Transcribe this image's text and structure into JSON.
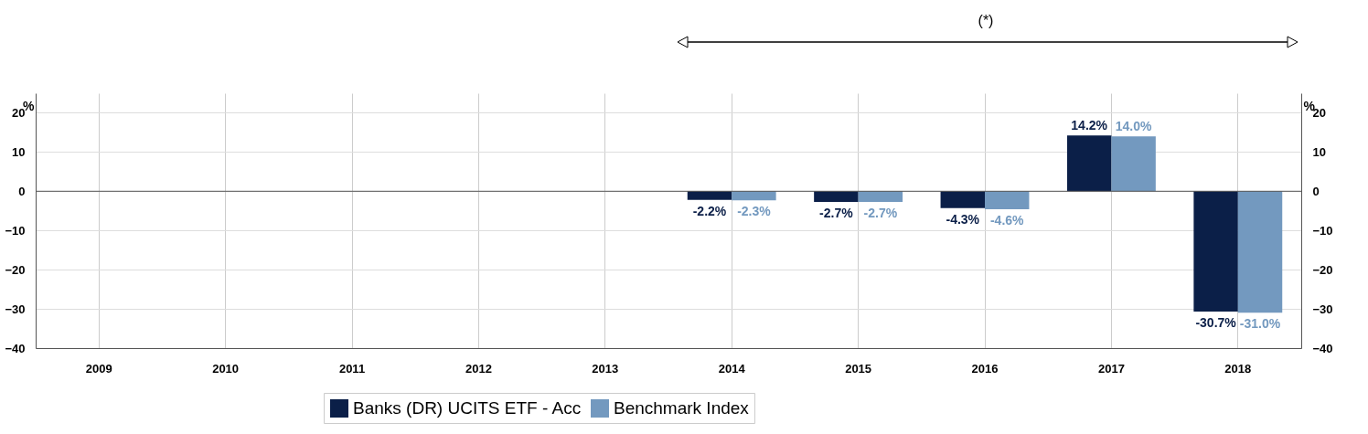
{
  "chart_data": {
    "type": "bar",
    "categories": [
      "2009",
      "2010",
      "2011",
      "2012",
      "2013",
      "2014",
      "2015",
      "2016",
      "2017",
      "2018"
    ],
    "series": [
      {
        "name": "Banks (DR) UCITS ETF - Acc",
        "color": "#0b1f48",
        "values": [
          null,
          null,
          null,
          null,
          null,
          -2.2,
          -2.7,
          -4.3,
          14.2,
          -30.7
        ],
        "value_labels": [
          null,
          null,
          null,
          null,
          null,
          "-2.2%",
          "-2.7%",
          "-4.3%",
          "14.2%",
          "-30.7%"
        ]
      },
      {
        "name": "Benchmark Index",
        "color": "#7399bf",
        "values": [
          null,
          null,
          null,
          null,
          null,
          -2.3,
          -2.7,
          -4.6,
          14.0,
          -31.0
        ],
        "value_labels": [
          null,
          null,
          null,
          null,
          null,
          "-2.3%",
          "-2.7%",
          "-4.6%",
          "14.0%",
          "-31.0%"
        ]
      }
    ],
    "ylabel": "%",
    "y2label": "%",
    "ylim": [
      -40,
      25
    ],
    "yticks": [
      -40,
      -30,
      -20,
      -10,
      0,
      10,
      20
    ],
    "y2lim": [
      -40,
      25
    ],
    "y2ticks": [
      -40,
      -30,
      -20,
      -10,
      0,
      10,
      20
    ],
    "ref_lines": [
      {
        "axis": "y2",
        "value": 0,
        "color": "#555555"
      }
    ],
    "annotations": [
      "(*)"
    ],
    "grid": true,
    "legend": "bottom"
  }
}
